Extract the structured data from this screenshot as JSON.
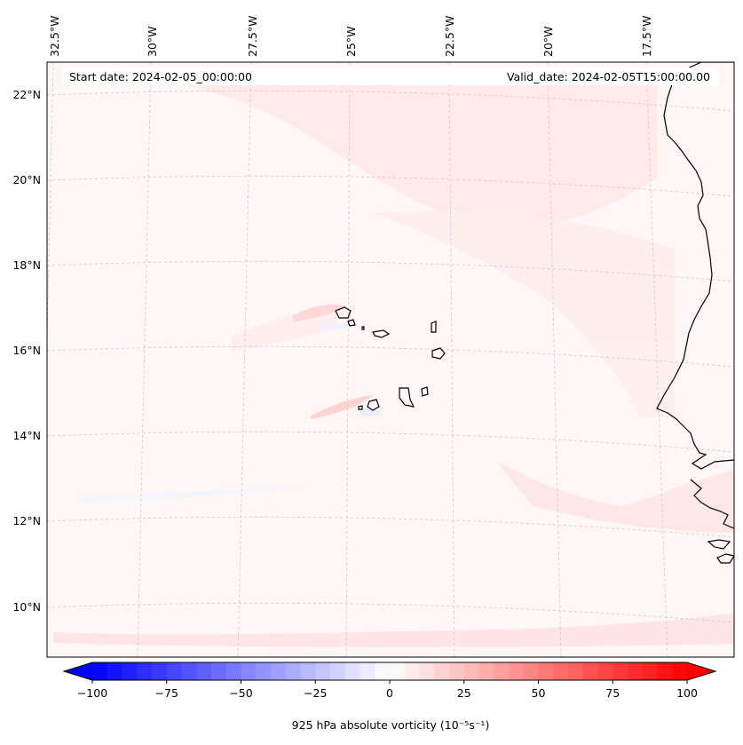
{
  "map": {
    "start_label": "Start date: 2024-02-05_00:00:00",
    "valid_label": "Valid_date: 2024-02-05T15:00:00.00",
    "lon_labels": [
      "32.5°W",
      "30°W",
      "27.5°W",
      "25°W",
      "22.5°W",
      "20°W",
      "17.5°W"
    ],
    "lat_labels": [
      "22°N",
      "20°N",
      "18°N",
      "16°N",
      "14°N",
      "12°N",
      "10°N"
    ],
    "extent": {
      "lon_min": -33.0,
      "lon_max": -16.0,
      "lat_min": 9.0,
      "lat_max": 22.8
    }
  },
  "colorbar": {
    "label": "925 hPa absolute vorticity (10⁻⁵s⁻¹)",
    "min": -100,
    "max": 100,
    "ticks": [
      "−100",
      "−75",
      "−50",
      "−25",
      "0",
      "25",
      "50",
      "75",
      "100"
    ],
    "neg_color": "#0000ff",
    "pos_color": "#ff0000"
  },
  "colors": {
    "background_field": "#fff5f5",
    "coast": "#000000",
    "grid": "#c8c8c8"
  }
}
